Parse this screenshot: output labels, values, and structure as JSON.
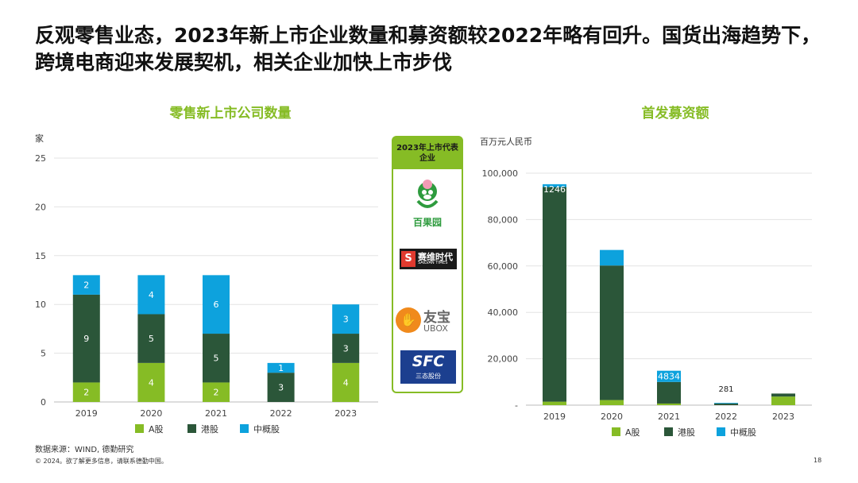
{
  "headline": "反观零售业态，2023年新上市企业数量和募资额较2022年略有回升。国货出海趋势下，跨境电商迎来发展契机，相关企业加快上市步伐",
  "colors": {
    "a_share": "#86bc25",
    "hk": "#2b5639",
    "us_china": "#0da2dd",
    "accent": "#86bc25"
  },
  "logos": {
    "header": "2023年上市代表企业",
    "items": [
      {
        "name": "百果园",
        "icon": "monkey-logo-icon"
      },
      {
        "name": "赛维时代",
        "sub": "SAILVAN TIMES",
        "icon": "sailvan-logo-icon"
      },
      {
        "name": "友宝",
        "sub": "UBOX",
        "icon": "ubox-logo-icon"
      },
      {
        "name": "SFC",
        "sub": "三态股份",
        "icon": "sfc-logo-icon"
      }
    ]
  },
  "chart_data": [
    {
      "type": "bar",
      "stacked": true,
      "title": "零售新上市公司数量",
      "ylabel": "家",
      "ylim": [
        0,
        25
      ],
      "yticks": [
        0,
        5,
        10,
        15,
        20,
        25
      ],
      "categories": [
        "2019",
        "2020",
        "2021",
        "2022",
        "2023"
      ],
      "series": [
        {
          "name": "A股",
          "values": [
            2,
            4,
            2,
            0,
            4
          ],
          "labels": [
            "2",
            "4",
            "2",
            "",
            "4"
          ]
        },
        {
          "name": "港股",
          "values": [
            9,
            5,
            5,
            3,
            3
          ],
          "labels": [
            "9",
            "5",
            "5",
            "3",
            "3"
          ]
        },
        {
          "name": "中概股",
          "values": [
            2,
            4,
            6,
            1,
            3
          ],
          "labels": [
            "2",
            "4",
            "6",
            "1",
            "3"
          ]
        }
      ],
      "legend": "bottom"
    },
    {
      "type": "bar",
      "stacked": true,
      "title": "首发募资额",
      "ylabel": "百万元人民币",
      "ylim": [
        0,
        100000
      ],
      "yticks": [
        0,
        20000,
        40000,
        60000,
        80000,
        100000
      ],
      "ytick_labels": [
        "-",
        "20,000",
        "40,000",
        "60,000",
        "80,000",
        "100,000"
      ],
      "categories": [
        "2019",
        "2020",
        "2021",
        "2022",
        "2023"
      ],
      "series": [
        {
          "name": "A股",
          "values": [
            1500,
            2200,
            700,
            0,
            3700
          ],
          "labels": [
            "",
            "",
            "",
            "",
            ""
          ]
        },
        {
          "name": "港股",
          "values": [
            92500,
            58000,
            9300,
            700,
            1300
          ],
          "labels": [
            "",
            "",
            "",
            "",
            ""
          ]
        },
        {
          "name": "中概股",
          "values": [
            1246,
            6700,
            4834,
            281,
            0
          ],
          "labels": [
            "1246",
            "",
            "4834",
            "281",
            ""
          ]
        }
      ],
      "legend": "bottom"
    }
  ],
  "footer": {
    "source": "数据来源：WIND, 德勤研究",
    "copyright": "© 2024。欲了解更多信息，请联系德勤中国。",
    "page": "18"
  }
}
